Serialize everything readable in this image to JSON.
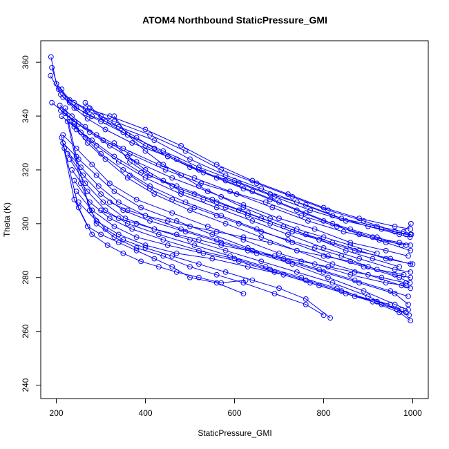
{
  "chart_data": {
    "type": "line",
    "title": "ATOM4 Northbound StaticPressure_GMI",
    "xlabel": "StaticPressure_GMI",
    "ylabel": "Theta (K)",
    "xlim": [
      165,
      1035
    ],
    "ylim": [
      235,
      368
    ],
    "xticks": [
      200,
      400,
      600,
      800,
      1000
    ],
    "yticks": [
      240,
      260,
      280,
      300,
      320,
      340,
      360
    ],
    "grid": false,
    "legend": "none",
    "color": "#0000ff",
    "marker": "open-circle",
    "series": [
      {
        "x": [
          188,
          200,
          230,
          265,
          320,
          400,
          480,
          560,
          640,
          720,
          800,
          880,
          960,
          995
        ],
        "y": [
          362,
          352,
          346,
          343,
          340,
          335,
          329,
          322,
          316,
          311,
          306,
          302,
          299,
          298
        ]
      },
      {
        "x": [
          190,
          205,
          240,
          270,
          330,
          410,
          490,
          570,
          650,
          730,
          810,
          890,
          960,
          995
        ],
        "y": [
          358,
          350,
          345,
          342,
          338,
          333,
          327,
          320,
          315,
          310,
          305,
          301,
          297,
          296
        ]
      },
      {
        "x": [
          187,
          210,
          245,
          280,
          340,
          420,
          500,
          580,
          660,
          740,
          820,
          900,
          970,
          994
        ],
        "y": [
          355,
          348,
          343,
          340,
          336,
          331,
          324,
          318,
          313,
          308,
          303,
          299,
          296,
          295
        ]
      },
      {
        "x": [
          212,
          230,
          265,
          300,
          360,
          440,
          520,
          600,
          680,
          760,
          840,
          920,
          980,
          996
        ],
        "y": [
          350,
          345,
          341,
          338,
          333,
          327,
          321,
          316,
          311,
          307,
          302,
          299,
          297,
          300
        ]
      },
      {
        "x": [
          215,
          240,
          270,
          310,
          370,
          450,
          530,
          610,
          690,
          770,
          850,
          930,
          985,
          997
        ],
        "y": [
          347,
          343,
          339,
          335,
          330,
          325,
          319,
          315,
          310,
          305,
          301,
          298,
          296,
          296
        ]
      },
      {
        "x": [
          190,
          220,
          250,
          290,
          350,
          430,
          510,
          590,
          670,
          750,
          830,
          910,
          970,
          995
        ],
        "y": [
          345,
          341,
          337,
          333,
          328,
          322,
          317,
          312,
          308,
          303,
          299,
          295,
          293,
          292
        ]
      },
      {
        "x": [
          208,
          235,
          265,
          305,
          365,
          445,
          525,
          605,
          685,
          765,
          845,
          925,
          985
        ],
        "y": [
          344,
          340,
          336,
          331,
          326,
          320,
          315,
          311,
          306,
          301,
          297,
          294,
          292
        ]
      },
      {
        "x": [
          210,
          240,
          275,
          320,
          380,
          460,
          540,
          620,
          700,
          780,
          860,
          940,
          990
        ],
        "y": [
          342,
          338,
          334,
          329,
          323,
          317,
          312,
          307,
          302,
          298,
          293,
          290,
          288
        ]
      },
      {
        "x": [
          212,
          240,
          280,
          330,
          390,
          470,
          550,
          630,
          710,
          790,
          870,
          950,
          995
        ],
        "y": [
          340,
          336,
          331,
          325,
          319,
          314,
          309,
          304,
          299,
          294,
          290,
          287,
          285
        ]
      },
      {
        "x": [
          230,
          255,
          290,
          340,
          400,
          480,
          560,
          640,
          720,
          800,
          880,
          960,
          995
        ],
        "y": [
          338,
          334,
          329,
          323,
          317,
          311,
          306,
          301,
          296,
          291,
          287,
          283,
          282
        ]
      },
      {
        "x": [
          240,
          265,
          300,
          350,
          410,
          490,
          570,
          650,
          730,
          810,
          890,
          970,
          994
        ],
        "y": [
          337,
          332,
          326,
          320,
          314,
          308,
          303,
          298,
          293,
          288,
          284,
          280,
          278
        ]
      },
      {
        "x": [
          245,
          270,
          310,
          360,
          420,
          500,
          580,
          660,
          740,
          820,
          900,
          975,
          995
        ],
        "y": [
          335,
          330,
          324,
          317,
          311,
          305,
          300,
          295,
          290,
          285,
          281,
          277,
          276
        ]
      },
      {
        "x": [
          215,
          245,
          280,
          320,
          380,
          460,
          540,
          620,
          700,
          780,
          860,
          940,
          985
        ],
        "y": [
          333,
          328,
          322,
          315,
          309,
          304,
          299,
          294,
          289,
          285,
          281,
          278,
          277
        ]
      },
      {
        "x": [
          215,
          250,
          290,
          330,
          390,
          470,
          550,
          630,
          710,
          790,
          870,
          950,
          990
        ],
        "y": [
          330,
          324,
          318,
          312,
          306,
          301,
          296,
          291,
          287,
          283,
          279,
          275,
          273
        ]
      },
      {
        "x": [
          218,
          255,
          295,
          340,
          400,
          480,
          560,
          640,
          720,
          800,
          880,
          960,
          990
        ],
        "y": [
          328,
          321,
          314,
          308,
          303,
          298,
          294,
          290,
          286,
          282,
          278,
          274,
          270
        ]
      },
      {
        "x": [
          225,
          260,
          300,
          350,
          410,
          490,
          570,
          650,
          730,
          810,
          890,
          960,
          990
        ],
        "y": [
          326,
          318,
          311,
          305,
          301,
          297,
          293,
          289,
          285,
          280,
          275,
          270,
          268
        ]
      },
      {
        "x": [
          230,
          265,
          305,
          355,
          420,
          500,
          580,
          660,
          740,
          820,
          900,
          965,
          992
        ],
        "y": [
          324,
          315,
          308,
          302,
          298,
          294,
          290,
          286,
          282,
          278,
          273,
          268,
          266
        ]
      },
      {
        "x": [
          235,
          270,
          310,
          360,
          430,
          510,
          590,
          670,
          750,
          830,
          910,
          970,
          995
        ],
        "y": [
          320,
          312,
          305,
          300,
          296,
          292,
          288,
          284,
          280,
          276,
          271,
          267,
          264
        ]
      },
      {
        "x": [
          240,
          275,
          320,
          370,
          440,
          520,
          600,
          680,
          760,
          840,
          920,
          975
        ],
        "y": [
          316,
          308,
          302,
          298,
          294,
          290,
          287,
          283,
          279,
          275,
          271,
          268
        ]
      },
      {
        "x": [
          245,
          280,
          330,
          380,
          450,
          530,
          610,
          690,
          770,
          850,
          930,
          985
        ],
        "y": [
          312,
          305,
          299,
          295,
          292,
          289,
          286,
          282,
          278,
          274,
          270,
          267
        ]
      },
      {
        "x": [
          250,
          290,
          340,
          400,
          470,
          550,
          630,
          710,
          790,
          870,
          950
        ],
        "y": [
          308,
          301,
          296,
          292,
          289,
          287,
          284,
          281,
          277,
          273,
          270
        ]
      },
      {
        "x": [
          220,
          245,
          275,
          310,
          350,
          400,
          460,
          520,
          580,
          640,
          700,
          760,
          815
        ],
        "y": [
          343,
          325,
          305,
          298,
          294,
          291,
          288,
          285,
          282,
          279,
          276,
          272,
          265
        ]
      },
      {
        "x": [
          225,
          255,
          290,
          330,
          380,
          440,
          500,
          560,
          620,
          690,
          760,
          800
        ],
        "y": [
          338,
          315,
          300,
          295,
          291,
          288,
          284,
          281,
          278,
          274,
          270,
          266
        ]
      },
      {
        "x": [
          212,
          240,
          270,
          300,
          340,
          380,
          420,
          460,
          500,
          560,
          620
        ],
        "y": [
          332,
          309,
          299,
          296,
          293,
          290,
          287,
          284,
          280,
          278,
          274
        ]
      },
      {
        "x": [
          215,
          250,
          280,
          315,
          350,
          390,
          430,
          470,
          520,
          570,
          625
        ],
        "y": [
          330,
          306,
          296,
          292,
          289,
          286,
          284,
          282,
          280,
          278,
          279
        ]
      },
      {
        "x": [
          330,
          360,
          400,
          440,
          480,
          520,
          570,
          620,
          680,
          740,
          800,
          860,
          920
        ],
        "y": [
          340,
          333,
          327,
          322,
          318,
          314,
          310,
          306,
          302,
          298,
          295,
          292,
          289
        ]
      },
      {
        "x": [
          330,
          365,
          410,
          460,
          510,
          560,
          610,
          660,
          710,
          760,
          820,
          880,
          940,
          1000
        ],
        "y": [
          330,
          323,
          318,
          314,
          311,
          308,
          305,
          302,
          299,
          296,
          293,
          290,
          287,
          285
        ]
      },
      {
        "x": [
          360,
          400,
          440,
          480,
          530,
          580,
          630,
          680,
          730,
          790,
          850,
          910,
          970
        ],
        "y": [
          325,
          320,
          316,
          312,
          309,
          306,
          303,
          300,
          297,
          294,
          290,
          287,
          284
        ]
      },
      {
        "x": [
          365,
          410,
          460,
          510,
          560,
          610,
          660,
          720,
          780,
          840,
          900,
          960,
          995
        ],
        "y": [
          318,
          313,
          309,
          306,
          303,
          300,
          297,
          294,
          291,
          288,
          284,
          281,
          280
        ]
      },
      {
        "x": [
          300,
          340,
          380,
          420,
          470,
          520,
          570,
          630,
          690,
          750,
          810,
          870,
          930,
          985
        ],
        "y": [
          305,
          302,
          300,
          298,
          296,
          294,
          292,
          290,
          288,
          286,
          284,
          282,
          280,
          278
        ]
      },
      {
        "x": [
          320,
          360,
          400,
          450,
          500,
          560,
          620,
          680,
          740,
          800,
          860,
          920,
          980
        ],
        "y": [
          308,
          305,
          303,
          301,
          299,
          297,
          295,
          293,
          290,
          288,
          286,
          283,
          281
        ]
      },
      {
        "x": [
          265,
          300,
          340,
          380,
          420,
          470,
          520,
          580,
          640,
          700,
          760,
          820,
          880,
          940,
          995
        ],
        "y": [
          345,
          340,
          336,
          332,
          328,
          324,
          320,
          316,
          312,
          308,
          304,
          300,
          296,
          293,
          290
        ]
      },
      {
        "x": [
          275,
          310,
          350,
          400,
          450,
          500,
          560,
          620,
          680,
          740,
          800,
          860,
          920,
          975
        ],
        "y": [
          343,
          338,
          334,
          329,
          325,
          321,
          317,
          313,
          309,
          305,
          301,
          298,
          295,
          292
        ]
      }
    ]
  }
}
